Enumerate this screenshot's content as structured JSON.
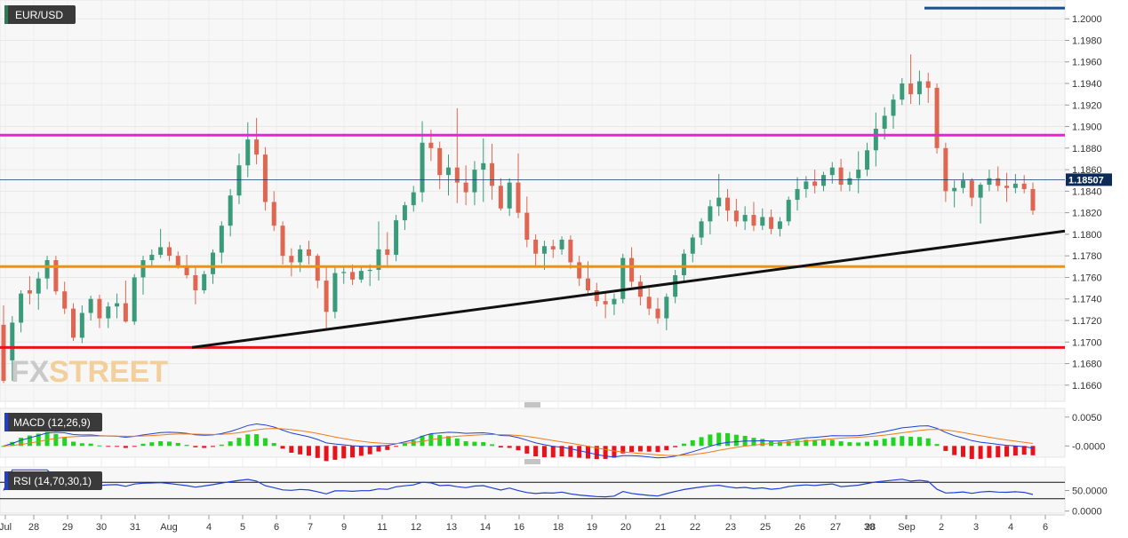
{
  "chart_data": {
    "type": "candlestick",
    "symbol": "EUR/USD",
    "price_axis": {
      "ylim": [
        1.1645,
        1.2015
      ],
      "ticks": [
        "1.2000",
        "1.1980",
        "1.1960",
        "1.1940",
        "1.1920",
        "1.1900",
        "1.1880",
        "1.1860",
        "1.1840",
        "1.1820",
        "1.1800",
        "1.1780",
        "1.1760",
        "1.1740",
        "1.1720",
        "1.1700",
        "1.1680",
        "1.1660"
      ],
      "current_price": "1.18507"
    },
    "x_labels": [
      "Jul",
      "28",
      "29",
      "30",
      "31",
      "Aug",
      "4",
      "5",
      "6",
      "7",
      "9",
      "11",
      "12",
      "13",
      "14",
      "16",
      "18",
      "19",
      "20",
      "21",
      "22",
      "23",
      "25",
      "26",
      "27",
      "28",
      "30",
      "Sep",
      "2",
      "3",
      "4",
      "6"
    ],
    "levels": [
      {
        "name": "resistance",
        "price": 1.1892,
        "color": "#ee1fd8"
      },
      {
        "name": "support",
        "price": 1.177,
        "color": "#f5900b"
      },
      {
        "name": "low-support",
        "price": 1.1695,
        "color": "#e8131a"
      },
      {
        "name": "top",
        "price": 1.201,
        "color": "#1a4f8f"
      }
    ],
    "trendline": {
      "from_price": 1.1695,
      "to_price": 1.1803,
      "color": "#111111"
    },
    "up_color": "#3a9b7a",
    "down_color": "#df6650",
    "candles": [
      [
        1.1716,
        1.1734,
        1.1662,
        1.1664
      ],
      [
        1.1683,
        1.1724,
        1.1664,
        1.1718
      ],
      [
        1.1718,
        1.1748,
        1.1709,
        1.1745
      ],
      [
        1.1748,
        1.1761,
        1.1735,
        1.1745
      ],
      [
        1.1745,
        1.1765,
        1.173,
        1.1759
      ],
      [
        1.1759,
        1.178,
        1.1749,
        1.1776
      ],
      [
        1.1776,
        1.178,
        1.1744,
        1.1747
      ],
      [
        1.1747,
        1.1756,
        1.1726,
        1.1731
      ],
      [
        1.1731,
        1.1736,
        1.1701,
        1.1704
      ],
      [
        1.1704,
        1.1734,
        1.1699,
        1.1727
      ],
      [
        1.1727,
        1.1743,
        1.172,
        1.174
      ],
      [
        1.174,
        1.1744,
        1.1713,
        1.1722
      ],
      [
        1.1722,
        1.1737,
        1.1713,
        1.1733
      ],
      [
        1.1733,
        1.1745,
        1.1722,
        1.1736
      ],
      [
        1.1736,
        1.1757,
        1.1718,
        1.1719
      ],
      [
        1.1719,
        1.1763,
        1.1716,
        1.176
      ],
      [
        1.176,
        1.178,
        1.1744,
        1.1776
      ],
      [
        1.1776,
        1.1786,
        1.177,
        1.1781
      ],
      [
        1.1781,
        1.1805,
        1.1778,
        1.1788
      ],
      [
        1.1788,
        1.1793,
        1.1775,
        1.178
      ],
      [
        1.178,
        1.1784,
        1.1768,
        1.1771
      ],
      [
        1.1771,
        1.1781,
        1.1759,
        1.1762
      ],
      [
        1.1762,
        1.1769,
        1.1735,
        1.1748
      ],
      [
        1.1748,
        1.1766,
        1.1745,
        1.1763
      ],
      [
        1.1763,
        1.1786,
        1.1754,
        1.1783
      ],
      [
        1.1783,
        1.1812,
        1.1773,
        1.1808
      ],
      [
        1.1808,
        1.1842,
        1.1798,
        1.1836
      ],
      [
        1.1836,
        1.1875,
        1.1828,
        1.1864
      ],
      [
        1.1864,
        1.1904,
        1.1853,
        1.1888
      ],
      [
        1.1888,
        1.1908,
        1.1865,
        1.1874
      ],
      [
        1.1874,
        1.1881,
        1.1822,
        1.183
      ],
      [
        1.183,
        1.184,
        1.1803,
        1.1808
      ],
      [
        1.1808,
        1.1812,
        1.1772,
        1.178
      ],
      [
        1.178,
        1.1787,
        1.1761,
        1.1774
      ],
      [
        1.1774,
        1.179,
        1.1765,
        1.1786
      ],
      [
        1.1786,
        1.1794,
        1.1772,
        1.178
      ],
      [
        1.178,
        1.1782,
        1.175,
        1.1757
      ],
      [
        1.1757,
        1.177,
        1.1713,
        1.1728
      ],
      [
        1.1728,
        1.177,
        1.1722,
        1.1764
      ],
      [
        1.1764,
        1.177,
        1.1754,
        1.1765
      ],
      [
        1.1765,
        1.1772,
        1.1753,
        1.1758
      ],
      [
        1.1758,
        1.177,
        1.1755,
        1.1766
      ],
      [
        1.1766,
        1.1772,
        1.1752,
        1.1767
      ],
      [
        1.1767,
        1.1812,
        1.1757,
        1.1786
      ],
      [
        1.1786,
        1.1802,
        1.1769,
        1.1781
      ],
      [
        1.1781,
        1.1818,
        1.1775,
        1.1813
      ],
      [
        1.1813,
        1.183,
        1.1804,
        1.1827
      ],
      [
        1.1827,
        1.1845,
        1.1821,
        1.1839
      ],
      [
        1.1839,
        1.1905,
        1.183,
        1.1885
      ],
      [
        1.1885,
        1.1897,
        1.1868,
        1.188
      ],
      [
        1.188,
        1.1886,
        1.1842,
        1.1855
      ],
      [
        1.1855,
        1.1874,
        1.1836,
        1.1862
      ],
      [
        1.1862,
        1.1917,
        1.1829,
        1.1848
      ],
      [
        1.1848,
        1.1864,
        1.1827,
        1.1839
      ],
      [
        1.1839,
        1.1868,
        1.1827,
        1.186
      ],
      [
        1.186,
        1.1889,
        1.183,
        1.1866
      ],
      [
        1.1866,
        1.1884,
        1.1832,
        1.1845
      ],
      [
        1.1845,
        1.1852,
        1.1822,
        1.1824
      ],
      [
        1.1824,
        1.1852,
        1.1817,
        1.1848
      ],
      [
        1.1848,
        1.1875,
        1.1815,
        1.182
      ],
      [
        1.182,
        1.1835,
        1.1788,
        1.1795
      ],
      [
        1.1795,
        1.18,
        1.1771,
        1.1782
      ],
      [
        1.1782,
        1.1794,
        1.1767,
        1.1789
      ],
      [
        1.1789,
        1.1795,
        1.1778,
        1.1786
      ],
      [
        1.1786,
        1.1798,
        1.1781,
        1.1795
      ],
      [
        1.1795,
        1.1799,
        1.1768,
        1.1774
      ],
      [
        1.1774,
        1.178,
        1.1752,
        1.1759
      ],
      [
        1.1759,
        1.1775,
        1.1744,
        1.1748
      ],
      [
        1.1748,
        1.1755,
        1.1733,
        1.1738
      ],
      [
        1.1738,
        1.1747,
        1.1722,
        1.1735
      ],
      [
        1.1735,
        1.1745,
        1.1725,
        1.174
      ],
      [
        1.174,
        1.1782,
        1.1736,
        1.1778
      ],
      [
        1.1778,
        1.1788,
        1.1751,
        1.1756
      ],
      [
        1.1756,
        1.1762,
        1.1734,
        1.1742
      ],
      [
        1.1742,
        1.175,
        1.1725,
        1.1731
      ],
      [
        1.1731,
        1.1741,
        1.1717,
        1.1722
      ],
      [
        1.1722,
        1.1745,
        1.1711,
        1.1742
      ],
      [
        1.1742,
        1.1767,
        1.1736,
        1.1762
      ],
      [
        1.1762,
        1.1786,
        1.1755,
        1.1782
      ],
      [
        1.1782,
        1.18,
        1.1774,
        1.1797
      ],
      [
        1.1797,
        1.1815,
        1.179,
        1.1812
      ],
      [
        1.1812,
        1.1832,
        1.18,
        1.1826
      ],
      [
        1.1826,
        1.1856,
        1.1817,
        1.1834
      ],
      [
        1.1834,
        1.1842,
        1.1812,
        1.1822
      ],
      [
        1.1822,
        1.1833,
        1.1807,
        1.1812
      ],
      [
        1.1812,
        1.1826,
        1.1804,
        1.1818
      ],
      [
        1.1818,
        1.183,
        1.1803,
        1.1808
      ],
      [
        1.1808,
        1.1824,
        1.1804,
        1.1816
      ],
      [
        1.1816,
        1.1823,
        1.18,
        1.1805
      ],
      [
        1.1805,
        1.1816,
        1.1798,
        1.1812
      ],
      [
        1.1812,
        1.1835,
        1.1808,
        1.1832
      ],
      [
        1.1832,
        1.1853,
        1.1822,
        1.1842
      ],
      [
        1.1842,
        1.1854,
        1.1834,
        1.1849
      ],
      [
        1.1849,
        1.186,
        1.1838,
        1.1845
      ],
      [
        1.1845,
        1.1858,
        1.184,
        1.1855
      ],
      [
        1.1855,
        1.1867,
        1.1847,
        1.1862
      ],
      [
        1.1862,
        1.187,
        1.184,
        1.1846
      ],
      [
        1.1846,
        1.1858,
        1.184,
        1.1852
      ],
      [
        1.1852,
        1.1877,
        1.1838,
        1.186
      ],
      [
        1.186,
        1.1885,
        1.1854,
        1.1878
      ],
      [
        1.1878,
        1.1913,
        1.1863,
        1.1898
      ],
      [
        1.1898,
        1.1918,
        1.1888,
        1.191
      ],
      [
        1.191,
        1.193,
        1.1898,
        1.1925
      ],
      [
        1.1925,
        1.1945,
        1.192,
        1.194
      ],
      [
        1.194,
        1.1967,
        1.1921,
        1.193
      ],
      [
        1.193,
        1.1952,
        1.192,
        1.1942
      ],
      [
        1.1942,
        1.195,
        1.1922,
        1.1936
      ],
      [
        1.1936,
        1.194,
        1.1875,
        1.188
      ],
      [
        1.188,
        1.1885,
        1.183,
        1.184
      ],
      [
        1.184,
        1.185,
        1.1825,
        1.1843
      ],
      [
        1.1843,
        1.1857,
        1.1838,
        1.185
      ],
      [
        1.185,
        1.1852,
        1.1826,
        1.1834
      ],
      [
        1.1834,
        1.1848,
        1.181,
        1.1846
      ],
      [
        1.1846,
        1.186,
        1.184,
        1.1852
      ],
      [
        1.1852,
        1.1863,
        1.184,
        1.1845
      ],
      [
        1.1845,
        1.1857,
        1.183,
        1.1843
      ],
      [
        1.1843,
        1.1856,
        1.1838,
        1.1847
      ],
      [
        1.1847,
        1.1855,
        1.1838,
        1.1842
      ],
      [
        1.1842,
        1.1848,
        1.1818,
        1.1822
      ]
    ],
    "macd": {
      "label": "MACD (12,26,9)",
      "ylim": [
        -0.0018,
        0.0062
      ],
      "ticks": [
        "0.0050",
        "-0.0000"
      ]
    },
    "rsi": {
      "label": "RSI (14,70,30,1)",
      "ylim": [
        -5,
        105
      ],
      "levels": [
        70,
        30
      ],
      "ticks": [
        "50.0000",
        "0.0000"
      ]
    }
  }
}
